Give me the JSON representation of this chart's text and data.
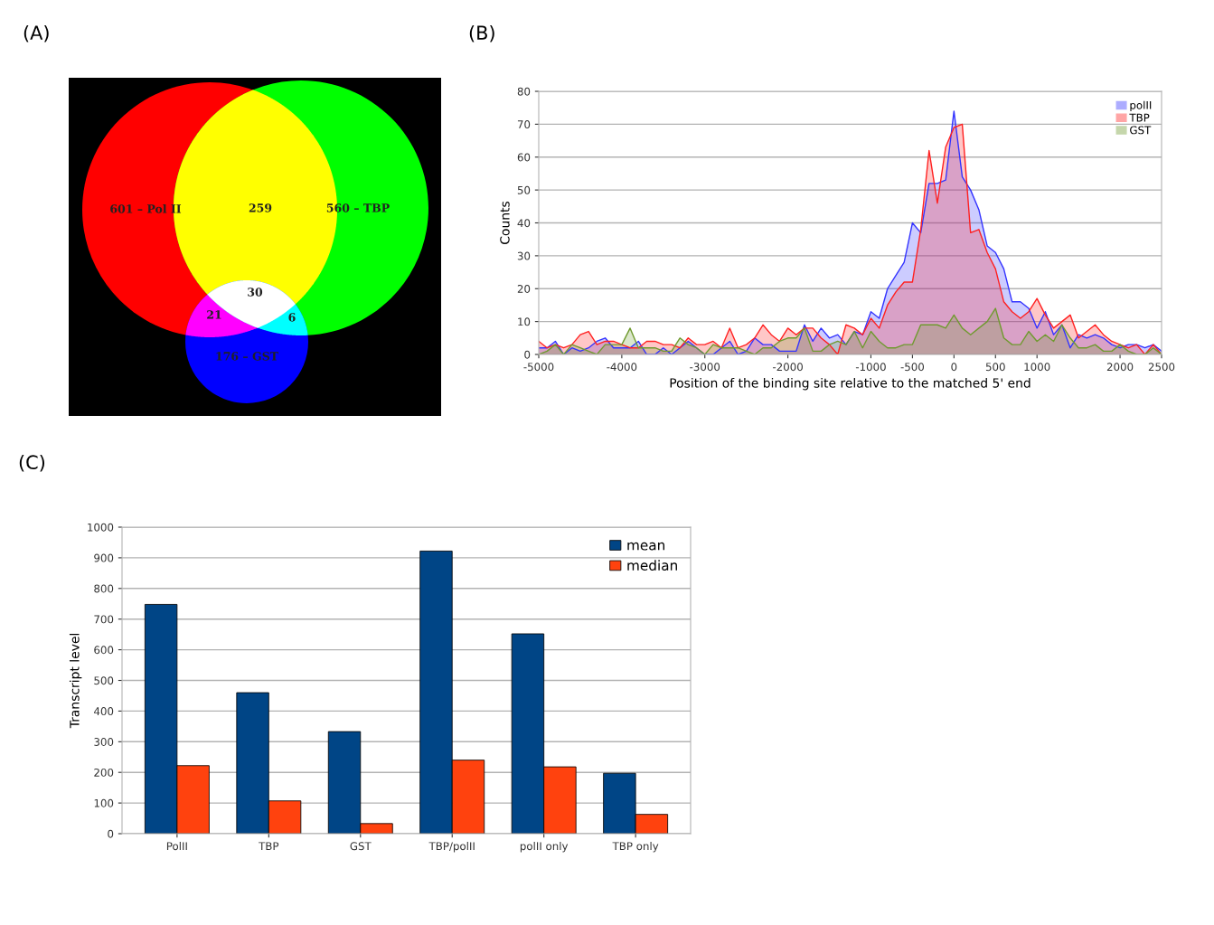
{
  "chart_data": [
    {
      "type": "other",
      "title": "(A)",
      "annotations": [
        "601 – Pol II",
        "259",
        "560 – TBP",
        "30",
        "21",
        "6",
        "176 – GST"
      ]
    },
    {
      "type": "area",
      "title": "(B)",
      "xlabel": "Position of the binding site relative to the matched 5' end",
      "ylabel": "Counts",
      "x": [
        -5000,
        -4900,
        -4800,
        -4700,
        -4600,
        -4500,
        -4400,
        -4300,
        -4200,
        -4100,
        -4000,
        -3900,
        -3800,
        -3700,
        -3600,
        -3500,
        -3400,
        -3300,
        -3200,
        -3100,
        -3000,
        -2900,
        -2800,
        -2700,
        -2600,
        -2500,
        -2400,
        -2300,
        -2200,
        -2100,
        -2000,
        -1900,
        -1800,
        -1700,
        -1600,
        -1500,
        -1400,
        -1300,
        -1200,
        -1100,
        -1000,
        -900,
        -800,
        -700,
        -600,
        -500,
        -400,
        -300,
        -200,
        -100,
        0,
        100,
        200,
        300,
        400,
        500,
        600,
        700,
        800,
        900,
        1000,
        1100,
        1200,
        1300,
        1400,
        1500,
        1600,
        1700,
        1800,
        1900,
        2000,
        2100,
        2200,
        2300,
        2400,
        2500
      ],
      "series": [
        {
          "name": "polII",
          "color": "#3333ff",
          "values": [
            2,
            2,
            4,
            0,
            2,
            1,
            2,
            4,
            5,
            2,
            2,
            2,
            4,
            0,
            0,
            2,
            0,
            2,
            4,
            2,
            0,
            0,
            2,
            4,
            0,
            1,
            5,
            3,
            3,
            1,
            1,
            1,
            9,
            4,
            8,
            5,
            6,
            3,
            7,
            6,
            13,
            11,
            20,
            24,
            28,
            40,
            37,
            52,
            52,
            53,
            74,
            54,
            50,
            44,
            33,
            31,
            26,
            16,
            16,
            14,
            8,
            13,
            6,
            9,
            2,
            6,
            5,
            6,
            5,
            3,
            2,
            3,
            3,
            2,
            3,
            1
          ]
        },
        {
          "name": "TBP",
          "color": "#ff2020",
          "values": [
            4,
            2,
            3,
            2,
            3,
            6,
            7,
            3,
            4,
            4,
            3,
            2,
            2,
            4,
            4,
            3,
            3,
            2,
            5,
            3,
            3,
            4,
            2,
            8,
            2,
            3,
            5,
            9,
            6,
            4,
            8,
            6,
            8,
            8,
            5,
            3,
            0,
            9,
            8,
            6,
            11,
            8,
            15,
            19,
            22,
            22,
            38,
            62,
            46,
            63,
            69,
            70,
            37,
            38,
            31,
            26,
            16,
            13,
            11,
            13,
            17,
            12,
            8,
            10,
            12,
            5,
            7,
            9,
            6,
            4,
            3,
            2,
            3,
            0,
            3,
            0
          ]
        },
        {
          "name": "GST",
          "color": "#6f9a2f",
          "values": [
            0,
            1,
            3,
            0,
            3,
            2,
            1,
            0,
            3,
            3,
            3,
            8,
            2,
            2,
            2,
            1,
            1,
            5,
            3,
            2,
            0,
            3,
            2,
            2,
            2,
            1,
            0,
            2,
            2,
            4,
            5,
            5,
            8,
            1,
            1,
            3,
            4,
            3,
            7,
            2,
            7,
            4,
            2,
            2,
            3,
            3,
            9,
            9,
            9,
            8,
            12,
            8,
            6,
            8,
            10,
            14,
            5,
            3,
            3,
            7,
            4,
            6,
            4,
            9,
            5,
            2,
            2,
            3,
            1,
            1,
            3,
            1,
            0,
            0,
            2,
            0
          ]
        }
      ],
      "xlim": [
        -5000,
        2500
      ],
      "xticks": [
        -5000,
        -4000,
        -3000,
        -2000,
        -1000,
        -500,
        0,
        500,
        1000,
        2000,
        2500
      ],
      "ylim": [
        0,
        80
      ],
      "yticks": [
        0,
        10,
        20,
        30,
        40,
        50,
        60,
        70,
        80
      ],
      "grid": "y",
      "legend": "top right"
    },
    {
      "type": "bar",
      "title": "(C)",
      "ylabel": "Transcript level",
      "categories": [
        "PolII",
        "TBP",
        "GST",
        "TBP/polII",
        "polII only",
        "TBP only"
      ],
      "series": [
        {
          "name": "mean",
          "color": "#004586",
          "values": [
            748,
            460,
            333,
            922,
            652,
            197
          ]
        },
        {
          "name": "median",
          "color": "#ff420e",
          "values": [
            222,
            107,
            33,
            240,
            218,
            63
          ]
        }
      ],
      "ylim": [
        0,
        1000
      ],
      "yticks": [
        0,
        100,
        200,
        300,
        400,
        500,
        600,
        700,
        800,
        900,
        1000
      ],
      "grid": "y",
      "legend": "top right"
    }
  ]
}
